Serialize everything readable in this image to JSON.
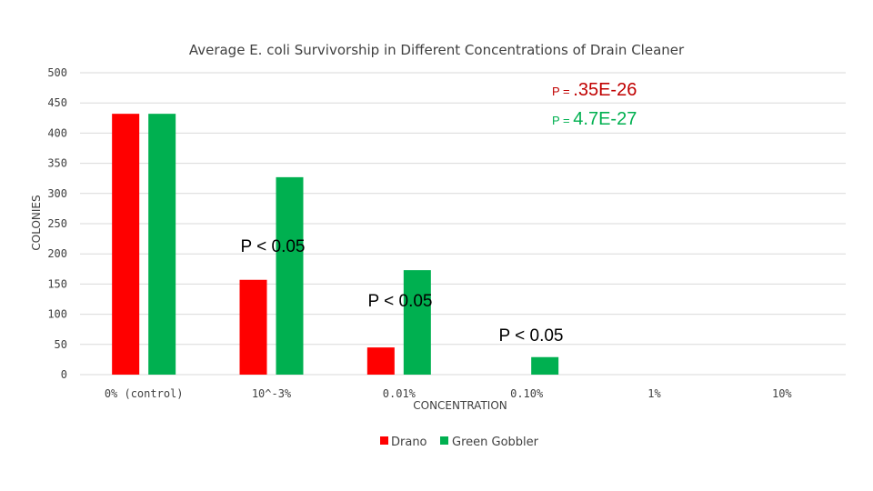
{
  "chart_data": {
    "type": "bar",
    "title": "Average E. coli Survivorship in Different Concentrations of Drain Cleaner",
    "xlabel": "CONCENTRATION",
    "ylabel": "COLONIES",
    "categories": [
      "0% (control)",
      "10^-3%",
      "0.01%",
      "0.10%",
      "1%",
      "10%"
    ],
    "ylim": [
      0,
      500
    ],
    "yticks": [
      "0",
      "50",
      "100",
      "150",
      "200",
      "250",
      "300",
      "350",
      "400",
      "450",
      "500"
    ],
    "grid": true,
    "legend_position": "bottom",
    "series": [
      {
        "name": "Drano",
        "color": "#ff0000",
        "values": [
          432,
          157,
          45,
          0,
          0,
          0
        ]
      },
      {
        "name": "Green Gobbler",
        "color": "#00b050",
        "values": [
          432,
          327,
          173,
          29,
          0,
          0
        ]
      }
    ],
    "annotations": [
      {
        "text": "P < 0.05",
        "color": "#000000"
      },
      {
        "text": "P < 0.05",
        "color": "#000000"
      },
      {
        "text": "P < 0.05",
        "color": "#000000"
      }
    ],
    "pvalues": [
      {
        "prefix": "P = ",
        "value": ".35E-26",
        "color": "#c00000"
      },
      {
        "prefix": "P = ",
        "value": "4.7E-27",
        "color": "#00b050"
      }
    ]
  }
}
